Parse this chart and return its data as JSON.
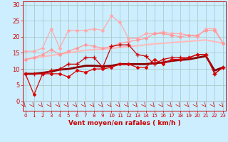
{
  "bg_color": "#cceeff",
  "grid_color": "#aacccc",
  "xlabel": "Vent moyen/en rafales ( km/h )",
  "xlabel_color": "#cc0000",
  "xlabel_fontsize": 6.5,
  "xticks": [
    0,
    1,
    2,
    3,
    4,
    5,
    6,
    7,
    8,
    9,
    10,
    11,
    12,
    13,
    14,
    15,
    16,
    17,
    18,
    19,
    20,
    21,
    22,
    23
  ],
  "yticks": [
    0,
    5,
    10,
    15,
    20,
    25,
    30
  ],
  "ylim": [
    -3,
    31
  ],
  "xlim": [
    -0.3,
    23.3
  ],
  "lines": [
    {
      "x": [
        0,
        1,
        2,
        3,
        4,
        5,
        6,
        7,
        8,
        9,
        10,
        11,
        12,
        13,
        14,
        15,
        16,
        17,
        18,
        19,
        20,
        21,
        22,
        23
      ],
      "y": [
        8.5,
        2.0,
        8.5,
        8.5,
        8.5,
        7.5,
        9.5,
        9.0,
        10.0,
        10.0,
        10.5,
        11.5,
        11.5,
        10.5,
        10.5,
        13.0,
        11.5,
        13.0,
        13.0,
        13.5,
        14.5,
        14.5,
        8.5,
        10.5
      ],
      "color": "#dd0000",
      "lw": 0.9,
      "marker": "D",
      "ms": 2.0,
      "zorder": 6
    },
    {
      "x": [
        0,
        1,
        2,
        3,
        4,
        5,
        6,
        7,
        8,
        9,
        10,
        11,
        12,
        13,
        14,
        15,
        16,
        17,
        18,
        19,
        20,
        21,
        22,
        23
      ],
      "y": [
        8.5,
        8.5,
        8.5,
        9.5,
        10.0,
        11.5,
        11.5,
        13.5,
        13.5,
        10.5,
        17.0,
        17.5,
        17.5,
        14.5,
        14.0,
        11.5,
        13.0,
        13.5,
        13.5,
        13.5,
        14.5,
        14.5,
        8.5,
        10.5
      ],
      "color": "#cc0000",
      "lw": 0.9,
      "marker": "+",
      "ms": 4,
      "zorder": 7
    },
    {
      "x": [
        0,
        1,
        2,
        3,
        4,
        5,
        6,
        7,
        8,
        9,
        10,
        11,
        12,
        13,
        14,
        15,
        16,
        17,
        18,
        19,
        20,
        21,
        22,
        23
      ],
      "y": [
        8.5,
        8.5,
        8.8,
        9.2,
        9.8,
        10.0,
        10.5,
        11.0,
        11.0,
        10.8,
        11.0,
        11.5,
        11.5,
        11.5,
        11.5,
        11.8,
        12.0,
        12.5,
        12.8,
        13.0,
        13.5,
        14.0,
        9.5,
        10.5
      ],
      "color": "#880000",
      "lw": 2.0,
      "marker": null,
      "ms": 0,
      "zorder": 3
    },
    {
      "x": [
        0,
        1,
        2,
        3,
        4,
        5,
        6,
        7,
        8,
        9,
        10,
        11,
        12,
        13,
        14,
        15,
        16,
        17,
        18,
        19,
        20,
        21,
        22,
        23
      ],
      "y": [
        13.0,
        13.4,
        13.8,
        14.2,
        14.6,
        15.0,
        15.4,
        15.8,
        16.0,
        16.2,
        16.4,
        16.7,
        17.0,
        17.2,
        17.5,
        17.8,
        18.0,
        18.2,
        18.4,
        18.6,
        18.8,
        19.0,
        18.5,
        18.0
      ],
      "color": "#ffbbbb",
      "lw": 1.5,
      "marker": null,
      "ms": 0,
      "zorder": 2
    },
    {
      "x": [
        0,
        1,
        2,
        3,
        4,
        5,
        6,
        7,
        8,
        9,
        10,
        11,
        12,
        13,
        14,
        15,
        16,
        17,
        18,
        19,
        20,
        21,
        22,
        23
      ],
      "y": [
        13.0,
        13.5,
        14.5,
        16.0,
        14.5,
        15.5,
        16.5,
        17.5,
        17.0,
        16.5,
        17.0,
        18.0,
        18.5,
        19.0,
        19.5,
        21.0,
        21.0,
        20.5,
        20.0,
        20.5,
        20.5,
        22.0,
        22.0,
        18.0
      ],
      "color": "#ff9999",
      "lw": 0.9,
      "marker": "D",
      "ms": 2.0,
      "zorder": 5
    },
    {
      "x": [
        0,
        1,
        2,
        3,
        4,
        5,
        6,
        7,
        8,
        9,
        10,
        11,
        12,
        13,
        14,
        15,
        16,
        17,
        18,
        19,
        20,
        21,
        22,
        23
      ],
      "y": [
        15.5,
        15.5,
        16.5,
        22.5,
        16.5,
        22.0,
        22.0,
        22.0,
        22.5,
        22.0,
        26.5,
        24.5,
        19.5,
        19.5,
        21.0,
        21.0,
        21.5,
        21.0,
        21.0,
        20.5,
        20.0,
        22.5,
        22.5,
        18.0
      ],
      "color": "#ffaaaa",
      "lw": 0.9,
      "marker": "D",
      "ms": 2.0,
      "zorder": 4
    }
  ]
}
